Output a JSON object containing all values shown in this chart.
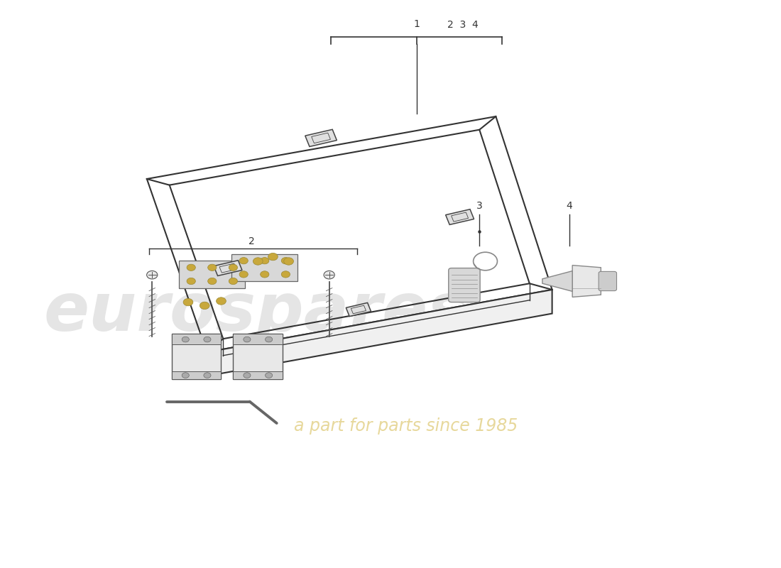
{
  "bg_color": "#ffffff",
  "watermark_text1": "eurospares",
  "watermark_text2": "a part for parts since 1985",
  "frame_color": "#333333",
  "hardware_color": "#888888",
  "gold_color": "#c8a83c",
  "line_color": "#444444"
}
